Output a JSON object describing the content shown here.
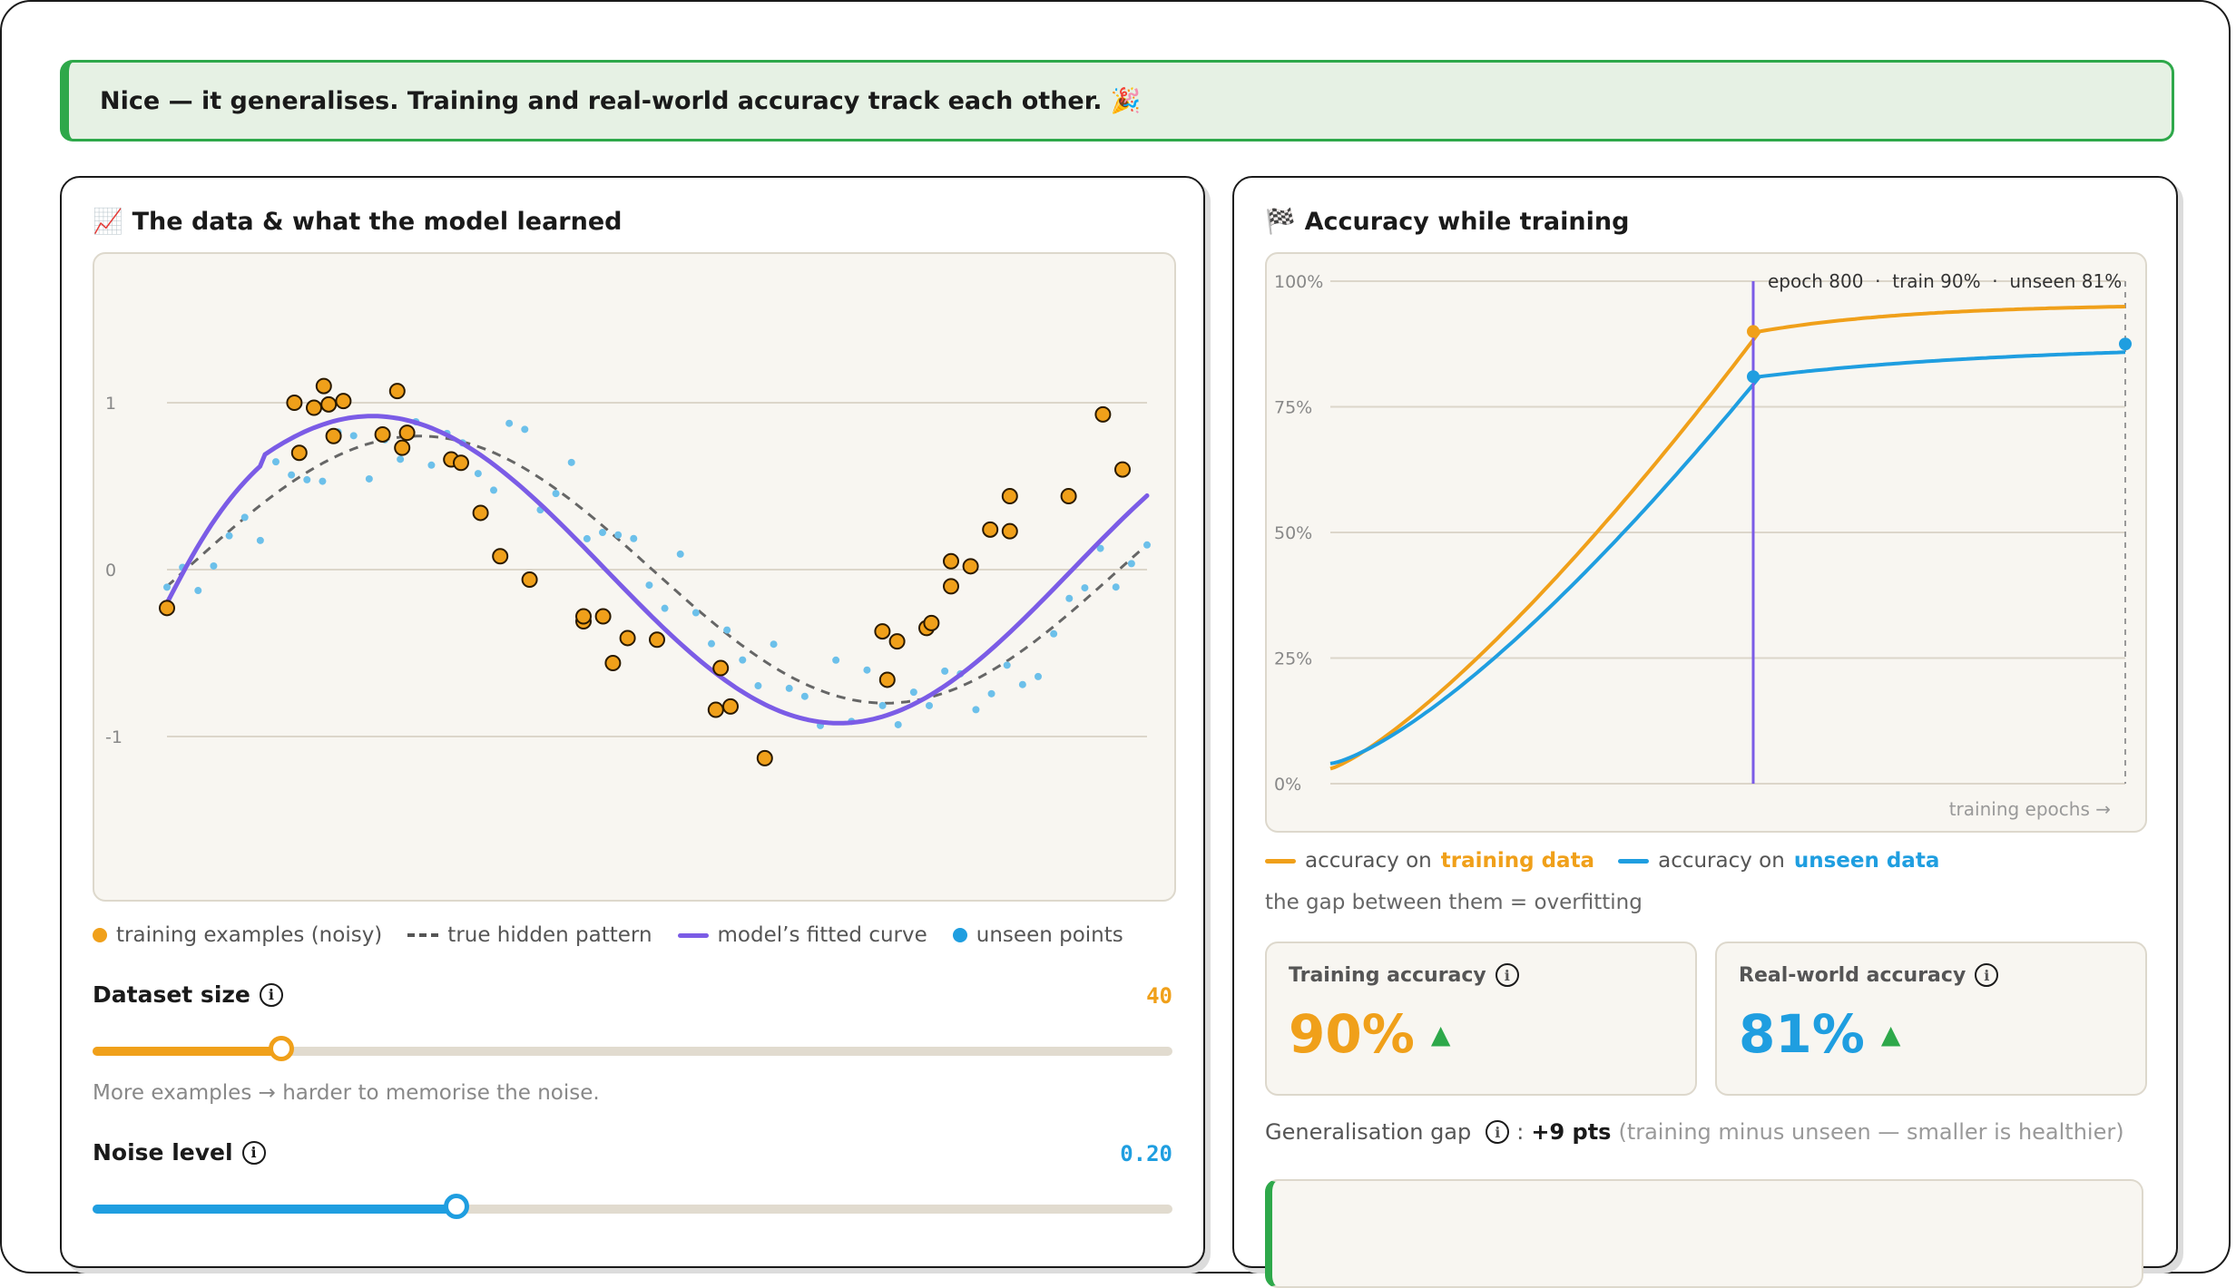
{
  "banner": {
    "text": "Nice — it generalises. Training and real-world accuracy track each other. 🎉"
  },
  "left_card": {
    "title_icon": "📈",
    "title": "The data & what the model learned",
    "y_ticks": [
      "1",
      "0",
      "-1"
    ],
    "legend": {
      "training": "training examples (noisy)",
      "true": "true hidden pattern",
      "fitted": "model’s fitted curve",
      "unseen": "unseen points"
    },
    "dataset": {
      "label": "Dataset size",
      "value": "40",
      "fraction": 0.175,
      "hint": "More examples → harder to memorise the noise."
    },
    "noise": {
      "label": "Noise level",
      "value": "0.20",
      "fraction": 0.337
    }
  },
  "right_card": {
    "title_icon": "🏁",
    "title": "Accuracy while training",
    "y_ticks": [
      "100%",
      "75%",
      "50%",
      "25%",
      "0%"
    ],
    "x_axis_label": "training epochs →",
    "tooltip": "epoch 800  ·  train 90%  ·  unseen 81%",
    "legend_prefix": "accuracy on",
    "legend_training": "training data",
    "legend_unseen": "unseen data",
    "gap_note": "the gap between them = overfitting",
    "training_stat": {
      "label": "Training accuracy",
      "value": "90%"
    },
    "realworld_stat": {
      "label": "Real-world accuracy",
      "value": "81%"
    },
    "gap": {
      "label": "Generalisation gap",
      "sep": ":",
      "value": "+9 pts",
      "note": "(training minus unseen — smaller is healthier)"
    }
  },
  "colors": {
    "training": "#f0a01a",
    "unseen": "#1f9ee0",
    "fitted": "#7b5ce6",
    "success": "#2ea84a"
  }
}
